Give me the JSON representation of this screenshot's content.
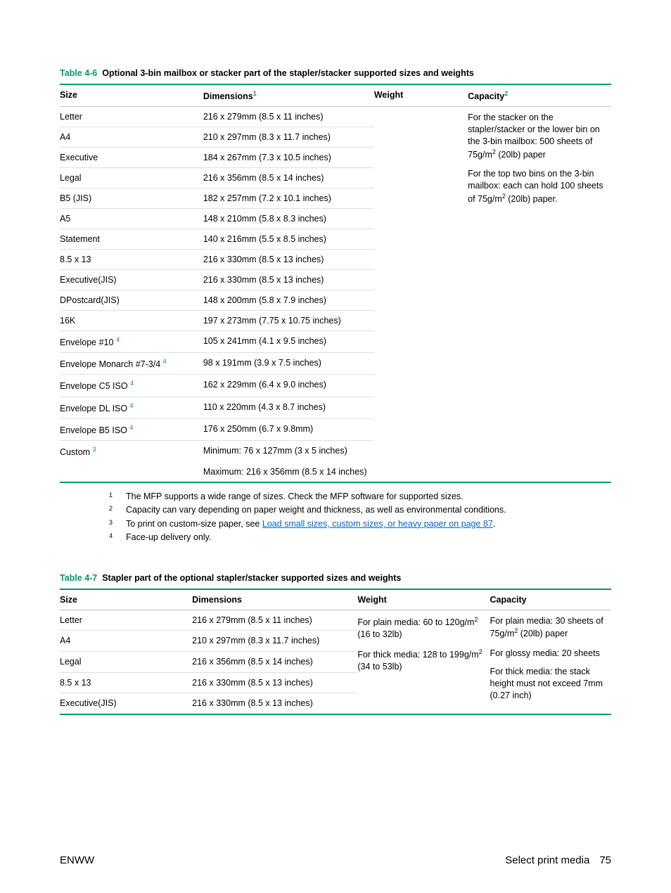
{
  "colors": {
    "accent": "#009966",
    "link": "#0066cc",
    "rule": "#e0e0e0"
  },
  "table1": {
    "label": "Table 4-6",
    "title": "Optional 3-bin mailbox or stacker part of the stapler/stacker supported sizes and weights",
    "headers": {
      "size": "Size",
      "dim": "Dimensions",
      "dimSup": "1",
      "weight": "Weight",
      "capacity": "Capacity",
      "capSup": "2"
    },
    "rows": [
      {
        "size": "Letter",
        "dim": "216 x 279mm (8.5 x 11 inches)"
      },
      {
        "size": "A4",
        "dim": "210 x 297mm (8.3 x 11.7 inches)"
      },
      {
        "size": "Executive",
        "dim": "184 x 267mm (7.3 x 10.5 inches)"
      },
      {
        "size": "Legal",
        "dim": "216 x 356mm (8.5 x 14 inches)"
      },
      {
        "size": "B5 (JIS)",
        "dim": "182 x 257mm (7.2 x 10.1 inches)"
      },
      {
        "size": "A5",
        "dim": "148 x 210mm (5.8 x 8.3 inches)"
      },
      {
        "size": "Statement",
        "dim": "140 x 216mm (5.5 x 8.5 inches)"
      },
      {
        "size": "8.5 x 13",
        "dim": "216 x 330mm (8.5 x 13 inches)"
      },
      {
        "size": "Executive(JIS)",
        "dim": "216 x 330mm (8.5 x 13 inches)"
      },
      {
        "size": "DPostcard(JIS)",
        "dim": "148 x 200mm (5.8 x 7.9 inches)"
      },
      {
        "size": "16K",
        "dim": "197 x 273mm (7.75 x 10.75 inches)"
      },
      {
        "size": "Envelope #10",
        "sup": "4",
        "dim": "105 x 241mm (4.1 x 9.5 inches)"
      },
      {
        "size": "Envelope Monarch #7-3/4",
        "sup": "4",
        "dim": "98 x 191mm (3.9 x 7.5 inches)"
      },
      {
        "size": "Envelope C5 ISO",
        "sup": "4",
        "dim": "162 x 229mm (6.4 x 9.0 inches)"
      },
      {
        "size": "Envelope DL ISO",
        "sup": "4",
        "dim": "110 x 220mm (4.3 x 8.7 inches)"
      },
      {
        "size": "Envelope B5 ISO",
        "sup": "4",
        "dim": "176 x 250mm (6.7 x 9.8mm)"
      },
      {
        "size": "Custom",
        "sup": "3",
        "dim": "Minimum: 76 x 127mm (3 x 5 inches)"
      }
    ],
    "customMax": "Maximum: 216 x 356mm (8.5 x 14 inches)",
    "capacity": {
      "p1a": "For the stacker on the stapler/stacker or the lower bin on the 3-bin mailbox: 500 sheets of 75g/m",
      "p1b": " (20lb) paper",
      "p2a": "For the top two bins on the 3-bin mailbox: each can hold 100 sheets of 75g/m",
      "p2b": " (20lb) paper."
    }
  },
  "footnotes": [
    {
      "n": "1",
      "text": "The MFP supports a wide range of sizes. Check the MFP software for supported sizes."
    },
    {
      "n": "2",
      "text": "Capacity can vary depending on paper weight and thickness, as well as environmental conditions."
    },
    {
      "n": "3",
      "pre": "To print on custom-size paper, see ",
      "link": "Load small sizes, custom sizes, or heavy paper on page 87",
      "post": "."
    },
    {
      "n": "4",
      "text": "Face-up delivery only."
    }
  ],
  "table2": {
    "label": "Table 4-7",
    "title": "Stapler part of the optional stapler/stacker supported sizes and weights",
    "headers": {
      "size": "Size",
      "dim": "Dimensions",
      "weight": "Weight",
      "capacity": "Capacity"
    },
    "rows": [
      {
        "size": "Letter",
        "dim": "216 x 279mm (8.5 x 11 inches)"
      },
      {
        "size": "A4",
        "dim": "210 x 297mm (8.3 x 11.7 inches)"
      },
      {
        "size": "Legal",
        "dim": "216 x 356mm (8.5 x 14 inches)"
      },
      {
        "size": "8.5 x 13",
        "dim": "216 x 330mm (8.5 x 13 inches)"
      },
      {
        "size": "Executive(JIS)",
        "dim": "216 x 330mm (8.5 x 13 inches)"
      }
    ],
    "weight": {
      "p1a": "For plain media: 60 to 120g/m",
      "p1b": " (16 to 32lb)",
      "p2a": "For thick media: 128 to 199g/m",
      "p2b": " (34 to 53lb)"
    },
    "capacity": {
      "p1a": "For plain media: 30 sheets of 75g/m",
      "p1b": " (20lb) paper",
      "p2": "For glossy media: 20 sheets",
      "p3": "For thick media: the stack height must not exceed 7mm (0.27 inch)"
    }
  },
  "footer": {
    "left": "ENWW",
    "rightLabel": "Select print media",
    "page": "75"
  }
}
